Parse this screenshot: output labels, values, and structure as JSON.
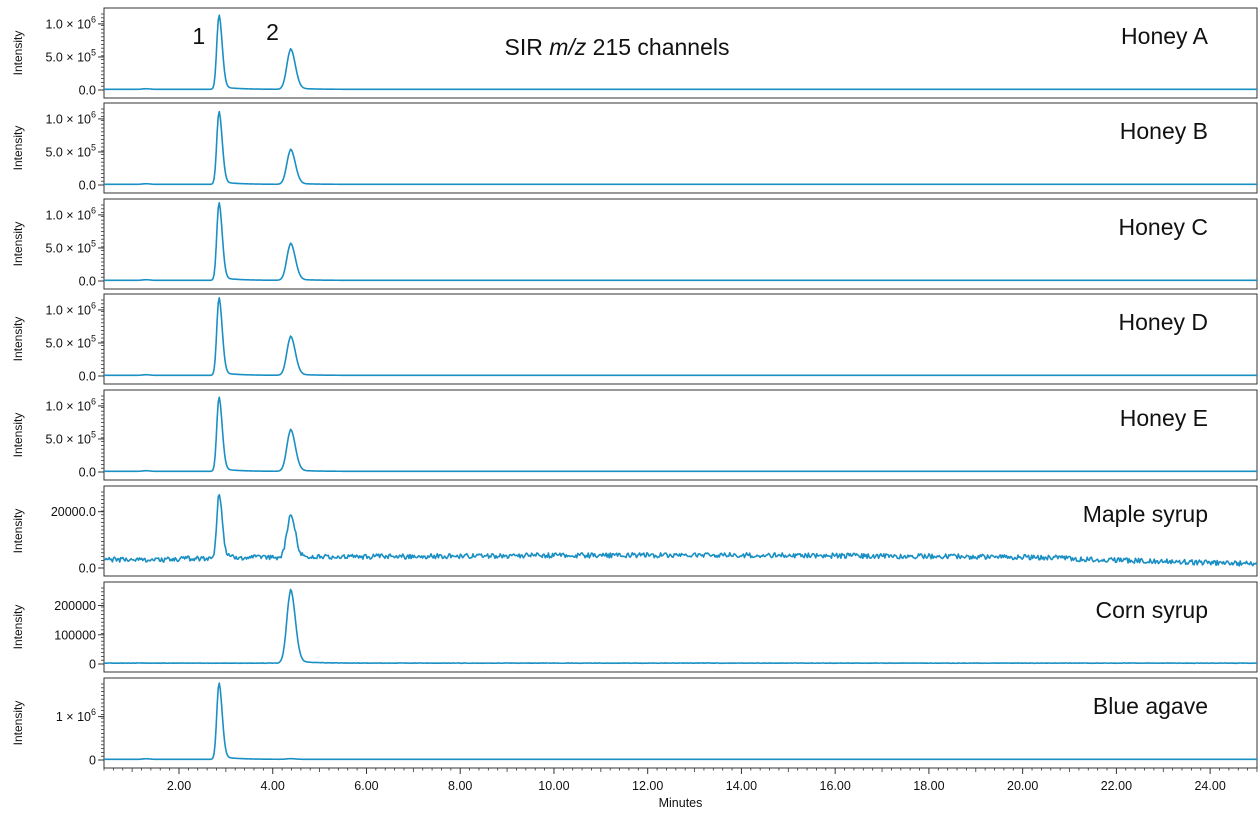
{
  "chart_data": {
    "type": "line",
    "title": "SIR m/z 215 channels",
    "title_parts": [
      "SIR ",
      "m/z",
      " 215 channels"
    ],
    "xlabel": "Minutes",
    "xlim": [
      0.4,
      25.0
    ],
    "x_ticks": [
      "2.00",
      "4.00",
      "6.00",
      "8.00",
      "10.00",
      "12.00",
      "14.00",
      "16.00",
      "18.00",
      "20.00",
      "22.00",
      "24.00"
    ],
    "x_tick_values": [
      2,
      4,
      6,
      8,
      10,
      12,
      14,
      16,
      18,
      20,
      22,
      24
    ],
    "peak_labels": [
      {
        "text": "1",
        "x": 2.85
      },
      {
        "text": "2",
        "x": 4.38
      }
    ],
    "color": "#1a8fc4",
    "panels": [
      {
        "name": "Honey A",
        "ylabel": "Intensity",
        "ylim": [
          0,
          1150000
        ],
        "yticks": [
          {
            "value": 0,
            "label": "0.0"
          },
          {
            "value": 500000,
            "label": "5.0 × 10",
            "exp": "5"
          },
          {
            "value": 1000000,
            "label": "1.0 × 10",
            "exp": "6"
          }
        ],
        "peaks": [
          {
            "x": 2.85,
            "y": 1100000
          },
          {
            "x": 4.38,
            "y": 600000
          }
        ],
        "baseline": 10000,
        "noise": 0
      },
      {
        "name": "Honey B",
        "ylabel": "Intensity",
        "ylim": [
          0,
          1150000
        ],
        "yticks": [
          {
            "value": 0,
            "label": "0.0"
          },
          {
            "value": 500000,
            "label": "5.0 × 10",
            "exp": "5"
          },
          {
            "value": 1000000,
            "label": "1.0 × 10",
            "exp": "6"
          }
        ],
        "peaks": [
          {
            "x": 2.85,
            "y": 1080000
          },
          {
            "x": 4.38,
            "y": 520000
          }
        ],
        "baseline": 10000,
        "noise": 0
      },
      {
        "name": "Honey C",
        "ylabel": "Intensity",
        "ylim": [
          0,
          1150000
        ],
        "yticks": [
          {
            "value": 0,
            "label": "0.0"
          },
          {
            "value": 500000,
            "label": "5.0 × 10",
            "exp": "5"
          },
          {
            "value": 1000000,
            "label": "1.0 × 10",
            "exp": "6"
          }
        ],
        "peaks": [
          {
            "x": 2.85,
            "y": 1150000
          },
          {
            "x": 4.38,
            "y": 550000
          }
        ],
        "baseline": 10000,
        "noise": 0
      },
      {
        "name": "Honey D",
        "ylabel": "Intensity",
        "ylim": [
          0,
          1150000
        ],
        "yticks": [
          {
            "value": 0,
            "label": "0.0"
          },
          {
            "value": 500000,
            "label": "5.0 × 10",
            "exp": "5"
          },
          {
            "value": 1000000,
            "label": "1.0 × 10",
            "exp": "6"
          }
        ],
        "peaks": [
          {
            "x": 2.85,
            "y": 1150000
          },
          {
            "x": 4.38,
            "y": 580000
          }
        ],
        "baseline": 10000,
        "noise": 0
      },
      {
        "name": "Honey E",
        "ylabel": "Intensity",
        "ylim": [
          0,
          1150000
        ],
        "yticks": [
          {
            "value": 0,
            "label": "0.0"
          },
          {
            "value": 500000,
            "label": "5.0 × 10",
            "exp": "5"
          },
          {
            "value": 1000000,
            "label": "1.0 × 10",
            "exp": "6"
          }
        ],
        "peaks": [
          {
            "x": 2.85,
            "y": 1100000
          },
          {
            "x": 4.38,
            "y": 620000
          }
        ],
        "baseline": 10000,
        "noise": 0
      },
      {
        "name": "Maple syrup",
        "ylabel": "Intensity",
        "ylim": [
          0,
          27000
        ],
        "yticks": [
          {
            "value": 0,
            "label": "0.0"
          },
          {
            "value": 20000,
            "label": "20000.0"
          }
        ],
        "peaks": [
          {
            "x": 2.85,
            "y": 26000
          },
          {
            "x": 4.38,
            "y": 18000
          }
        ],
        "baseline": 3500,
        "noise": 900
      },
      {
        "name": "Corn syrup",
        "ylabel": "Intensity",
        "ylim": [
          0,
          260000
        ],
        "yticks": [
          {
            "value": 0,
            "label": "0"
          },
          {
            "value": 100000,
            "label": "100000"
          },
          {
            "value": 200000,
            "label": "200000"
          }
        ],
        "peaks": [
          {
            "x": 2.85,
            "y": 3000
          },
          {
            "x": 4.38,
            "y": 245000
          }
        ],
        "baseline": 3000,
        "noise": 600
      },
      {
        "name": "Blue agave",
        "ylabel": "Intensity",
        "ylim": [
          0,
          1750000
        ],
        "yticks": [
          {
            "value": 0,
            "label": "0"
          },
          {
            "value": 1000000,
            "label": "1 × 10",
            "exp": "6"
          }
        ],
        "peaks": [
          {
            "x": 2.85,
            "y": 1720000
          },
          {
            "x": 4.38,
            "y": 30000
          }
        ],
        "baseline": 15000,
        "noise": 0
      }
    ]
  }
}
